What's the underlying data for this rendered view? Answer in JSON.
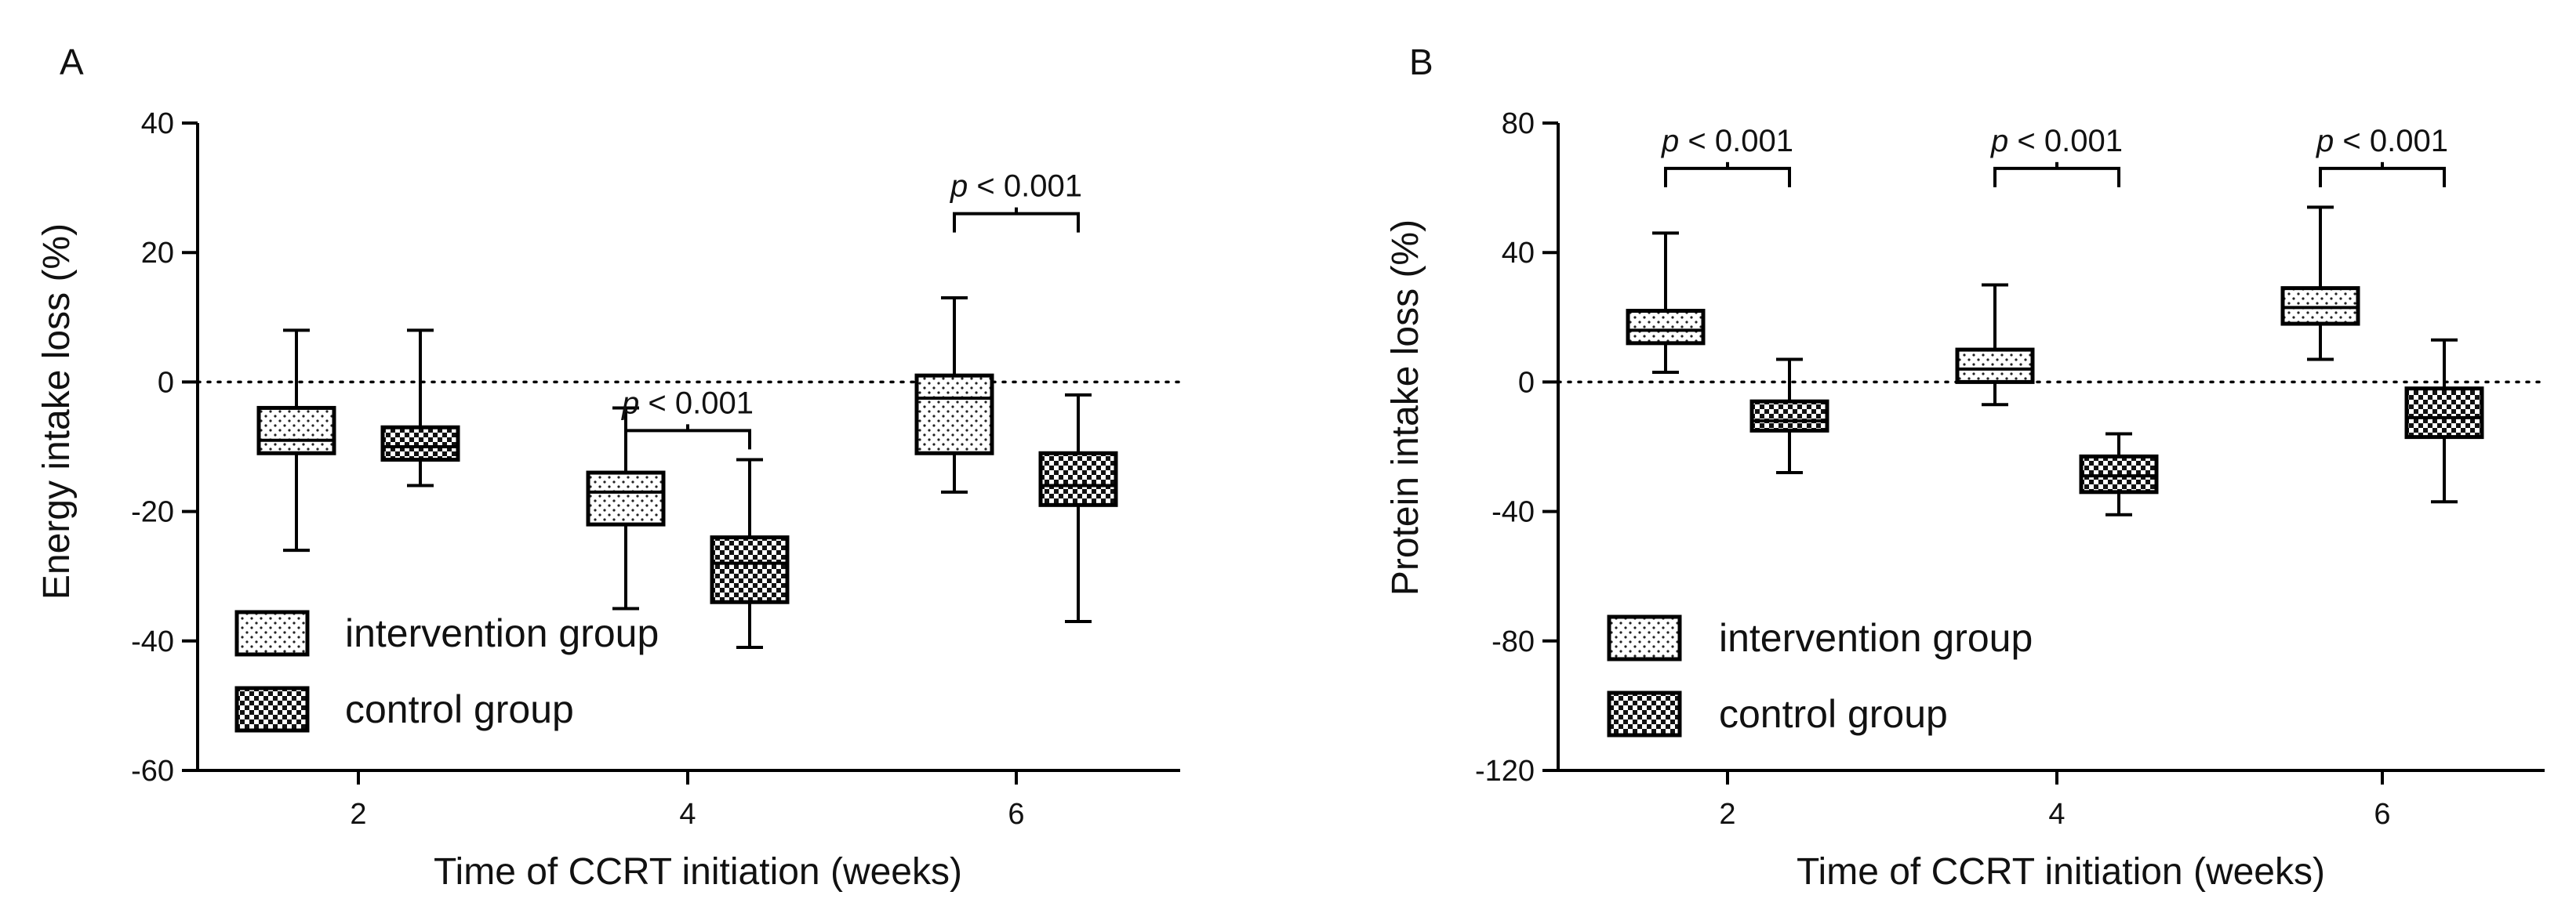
{
  "chart_data": [
    {
      "panel": "A",
      "type": "box",
      "xlabel": "Time of CCRT initiation (weeks)",
      "ylabel": "Energy intake loss (%)",
      "ylim": [
        -60,
        40
      ],
      "yticks": [
        40,
        20,
        0,
        -20,
        -40,
        -60
      ],
      "categories": [
        "2",
        "4",
        "6"
      ],
      "reference_line": 0,
      "series": [
        {
          "name": "intervention group",
          "pattern": "dots",
          "boxes": [
            {
              "min": -26,
              "q1": -11,
              "median": -9,
              "q3": -4,
              "max": 8
            },
            {
              "min": -35,
              "q1": -22,
              "median": -17,
              "q3": -14,
              "max": -4
            },
            {
              "min": -17,
              "q1": -11,
              "median": -2.5,
              "q3": 1,
              "max": 13
            }
          ]
        },
        {
          "name": "control group",
          "pattern": "checker",
          "boxes": [
            {
              "min": -16,
              "q1": -12,
              "median": -10,
              "q3": -7,
              "max": 8
            },
            {
              "min": -41,
              "q1": -34,
              "median": -28,
              "q3": -24,
              "max": -12
            },
            {
              "min": -37,
              "q1": -19,
              "median": -16,
              "q3": -11,
              "max": -2
            }
          ]
        }
      ],
      "significance": [
        {
          "category": "4",
          "y": -7.5,
          "p_label": "p",
          "text": " < 0.001"
        },
        {
          "category": "6",
          "y": 26,
          "p_label": "p",
          "text": " < 0.001"
        }
      ],
      "legend": {
        "position": "bottom-left",
        "items": [
          "intervention group",
          "control group"
        ]
      }
    },
    {
      "panel": "B",
      "type": "box",
      "xlabel": "Time of CCRT initiation (weeks)",
      "ylabel": "Protein intake loss (%)",
      "ylim": [
        -120,
        80
      ],
      "yticks": [
        80,
        40,
        0,
        -40,
        -80,
        -120
      ],
      "categories": [
        "2",
        "4",
        "6"
      ],
      "reference_line": 0,
      "series": [
        {
          "name": "intervention group",
          "pattern": "dots",
          "boxes": [
            {
              "min": 3,
              "q1": 12,
              "median": 16,
              "q3": 22,
              "max": 46
            },
            {
              "min": -7,
              "q1": 0,
              "median": 4,
              "q3": 10,
              "max": 30
            },
            {
              "min": 7,
              "q1": 18,
              "median": 23,
              "q3": 29,
              "max": 54
            }
          ]
        },
        {
          "name": "control group",
          "pattern": "checker",
          "boxes": [
            {
              "min": -28,
              "q1": -15,
              "median": -12,
              "q3": -6,
              "max": 7
            },
            {
              "min": -41,
              "q1": -34,
              "median": -29,
              "q3": -23,
              "max": -16
            },
            {
              "min": -37,
              "q1": -17,
              "median": -11,
              "q3": -2,
              "max": 13
            }
          ]
        }
      ],
      "significance": [
        {
          "category": "2",
          "y": 66,
          "p_label": "p",
          "text": " < 0.001"
        },
        {
          "category": "4",
          "y": 66,
          "p_label": "p",
          "text": " < 0.001"
        },
        {
          "category": "6",
          "y": 66,
          "p_label": "p",
          "text": " < 0.001"
        }
      ],
      "legend": {
        "position": "bottom-left",
        "items": [
          "intervention group",
          "control group"
        ]
      }
    }
  ]
}
